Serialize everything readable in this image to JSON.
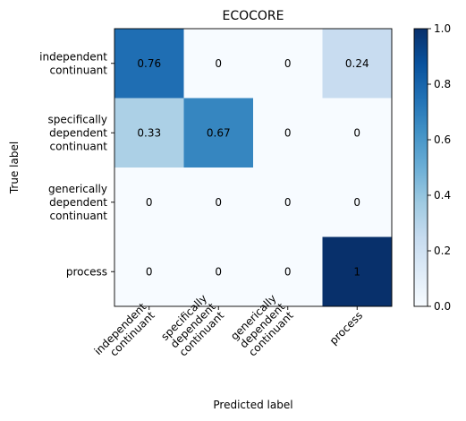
{
  "chart_data": {
    "type": "heatmap",
    "title": "ECOCORE",
    "xlabel": "Predicted label",
    "ylabel": "True label",
    "x_categories": [
      [
        "independent",
        "continuant"
      ],
      [
        "specifically",
        "dependent",
        "continuant"
      ],
      [
        "generically",
        "dependent",
        "continuant"
      ],
      [
        "process"
      ]
    ],
    "y_categories": [
      [
        "independent",
        "continuant"
      ],
      [
        "specifically",
        "dependent",
        "continuant"
      ],
      [
        "generically",
        "dependent",
        "continuant"
      ],
      [
        "process"
      ]
    ],
    "values": [
      [
        0.76,
        0,
        0,
        0.24
      ],
      [
        0.33,
        0.67,
        0,
        0
      ],
      [
        0,
        0,
        0,
        0
      ],
      [
        0,
        0,
        0,
        1
      ]
    ],
    "value_labels": [
      [
        "0.76",
        "0",
        "0",
        "0.24"
      ],
      [
        "0.33",
        "0.67",
        "0",
        "0"
      ],
      [
        "0",
        "0",
        "0",
        "0"
      ],
      [
        "0",
        "0",
        "0",
        "1"
      ]
    ],
    "colorbar": {
      "range": [
        0,
        1
      ],
      "ticks": [
        "0.0",
        "0.2",
        "0.4",
        "0.6",
        "0.8",
        "1.0"
      ],
      "colormap": "Blues"
    }
  }
}
